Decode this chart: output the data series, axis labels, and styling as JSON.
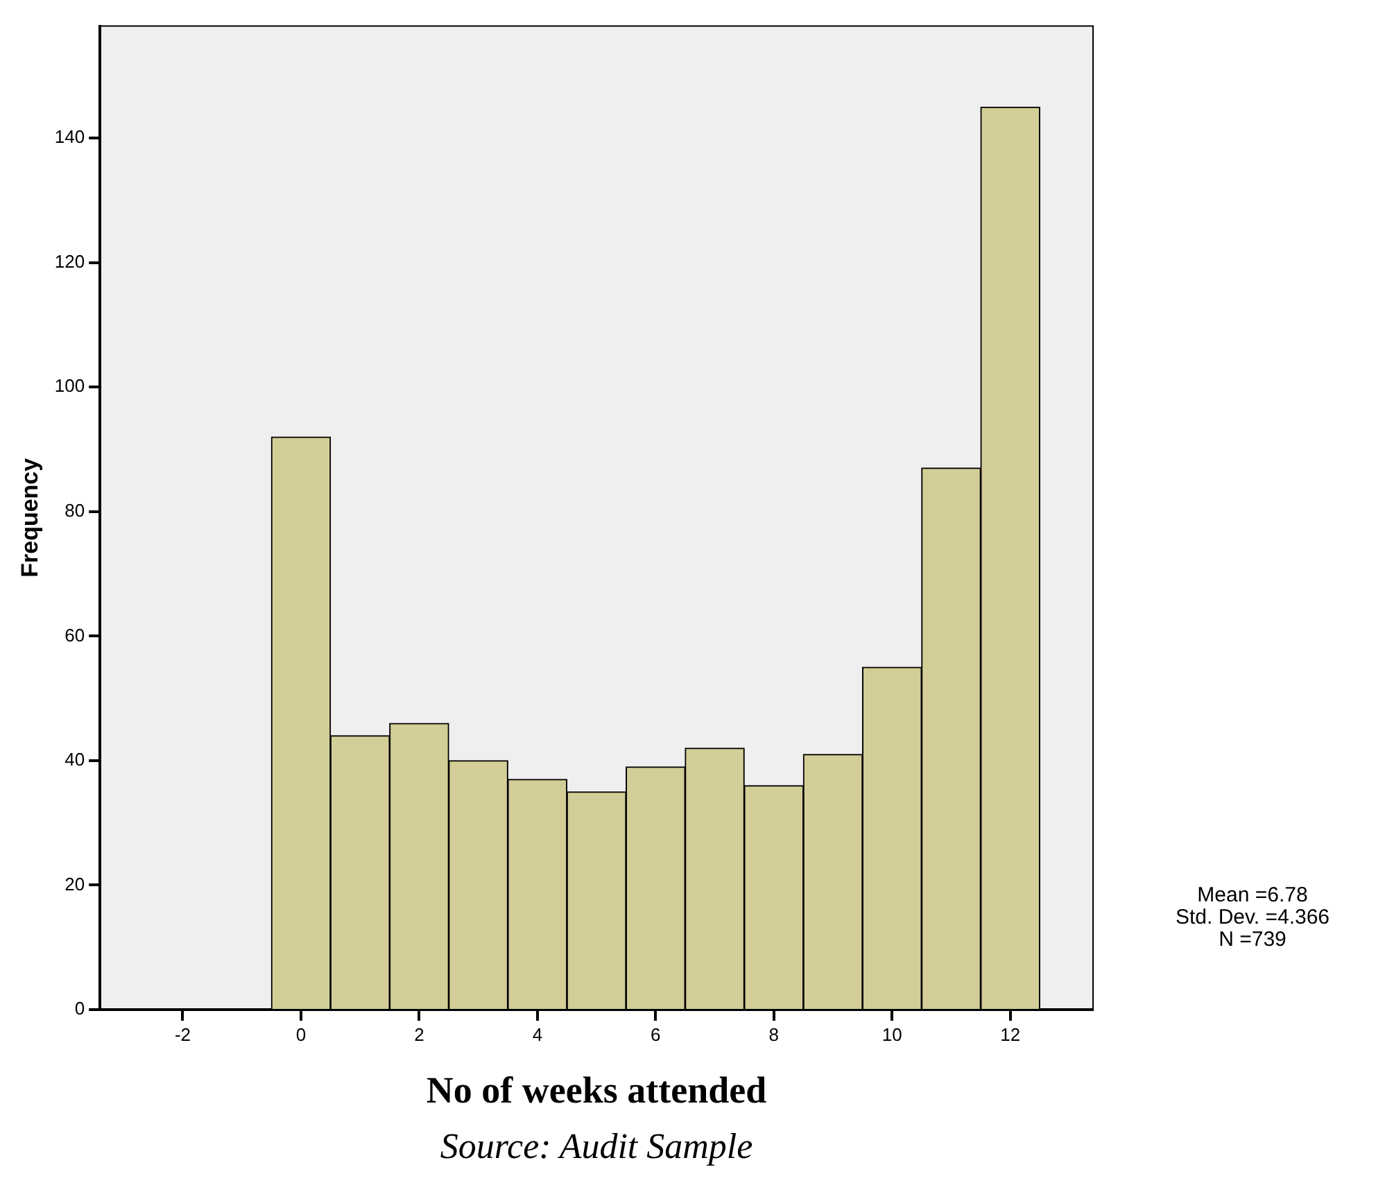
{
  "chart_data": {
    "type": "histogram",
    "xlabel": "No of weeks attended",
    "ylabel": "Frequency",
    "bins": [
      -0.5,
      0.5,
      1.5,
      2.5,
      3.5,
      4.5,
      5.5,
      6.5,
      7.5,
      8.5,
      9.5,
      10.5,
      11.5,
      12.5
    ],
    "values": [
      92,
      44,
      46,
      40,
      37,
      35,
      39,
      42,
      36,
      41,
      55,
      87,
      145
    ],
    "color": "#d3ce97",
    "xlim": [
      -3.4,
      13.4
    ],
    "xticks": [
      -2,
      0,
      2,
      4,
      6,
      8,
      10,
      12
    ],
    "ylim": [
      0,
      158
    ],
    "yticks": [
      0,
      20,
      40,
      60,
      80,
      100,
      120,
      140
    ],
    "grid": false,
    "legend": false,
    "annotations": [
      "Mean =6.78",
      "Std. Dev. =4.366",
      "N =739",
      "Source: Audit Sample"
    ]
  }
}
